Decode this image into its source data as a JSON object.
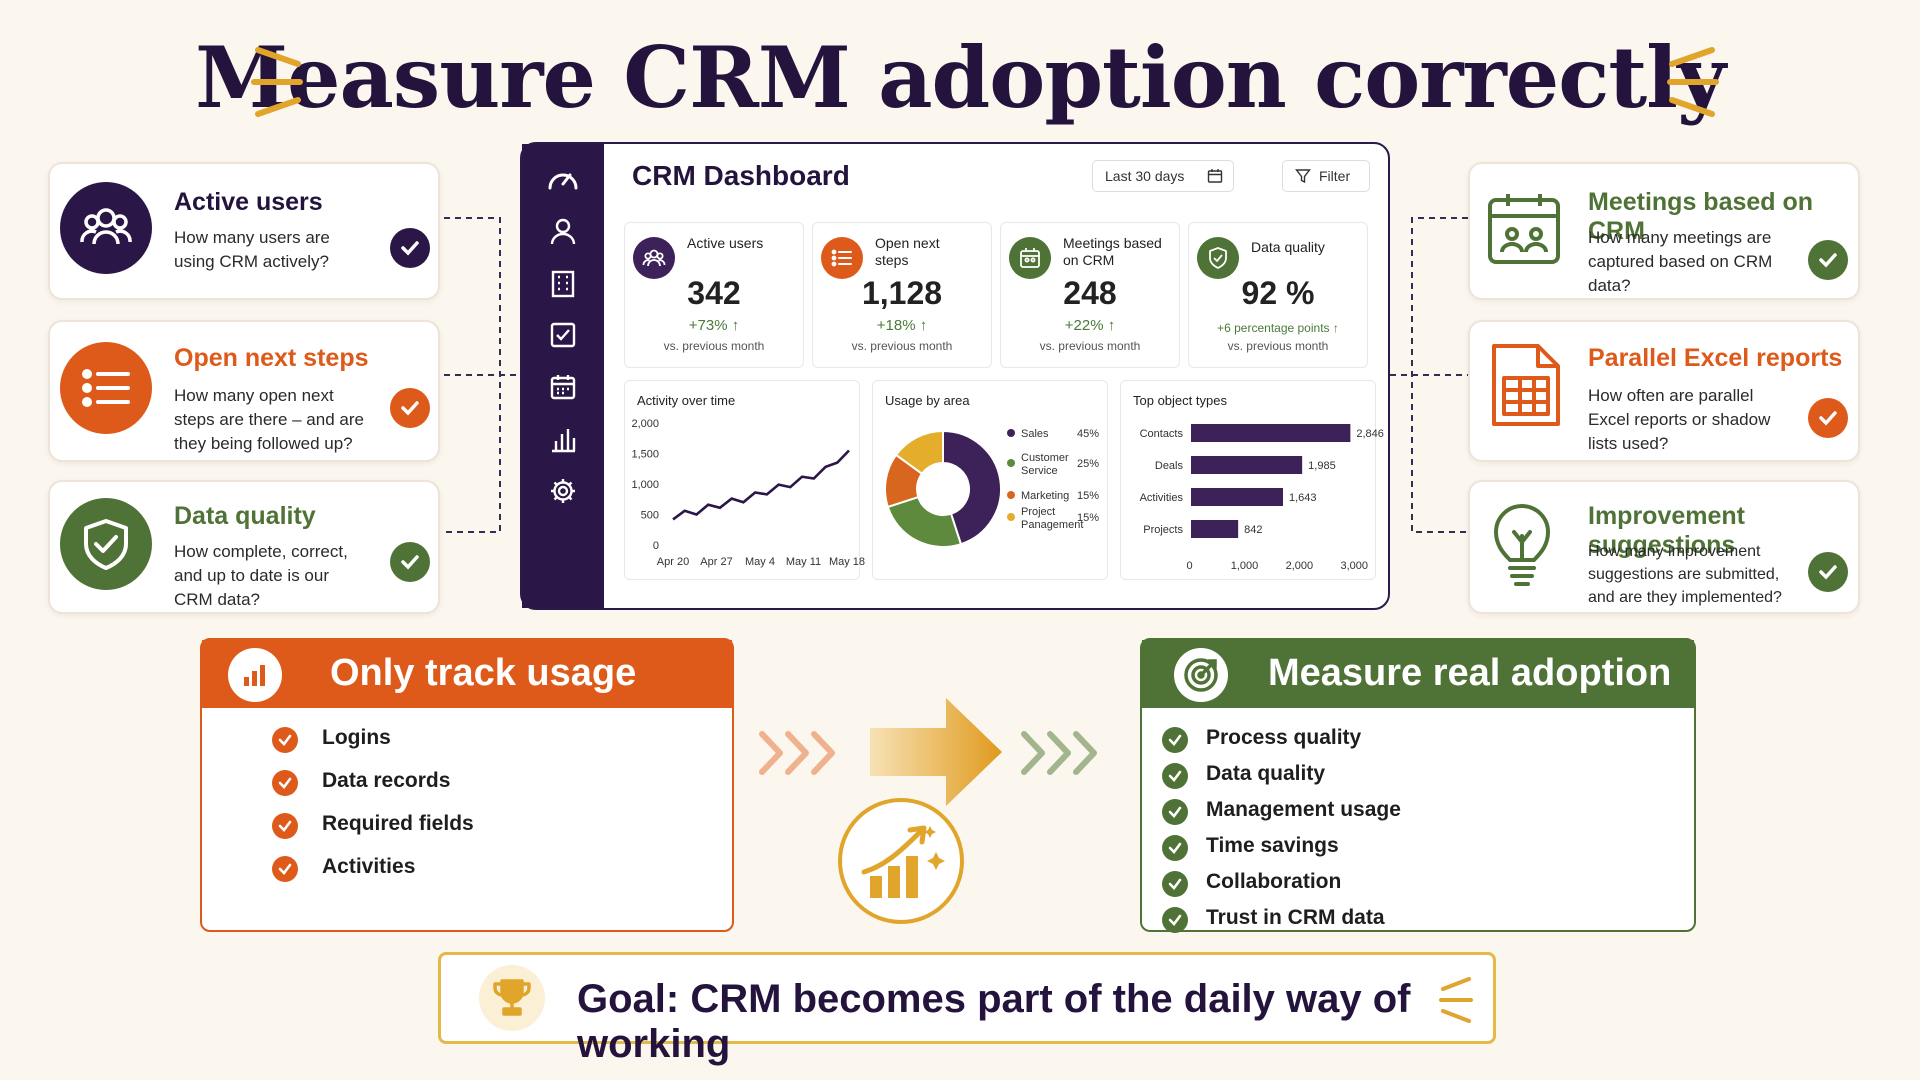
{
  "title": "Measure CRM adoption correctly",
  "colors": {
    "dark_purple": "#2b1747",
    "orange": "#dd5a1a",
    "green": "#4f7236",
    "gold": "#e0a52a",
    "background": "#fbf6ee"
  },
  "left_cards": [
    {
      "title": "Active users",
      "desc": "How many users are using CRM actively?",
      "icon": "users-icon"
    },
    {
      "title": "Open next steps",
      "desc": "How many open next steps are there – and are they being followed up?",
      "icon": "list-icon"
    },
    {
      "title": "Data quality",
      "desc": "How complete, correct, and up to date is our CRM data?",
      "icon": "shield-check-icon"
    }
  ],
  "right_cards": [
    {
      "title": "Meetings based on CRM",
      "desc": "How many meetings are captured based on CRM data?",
      "icon": "calendar-icon"
    },
    {
      "title": "Parallel Excel reports",
      "desc": "How often are parallel Excel reports or shadow lists used?",
      "icon": "spreadsheet-icon"
    },
    {
      "title": "Improvement suggestions",
      "desc": "How many improvement suggestions are submitted, and are they implemented?",
      "icon": "lightbulb-icon"
    }
  ],
  "dashboard": {
    "title": "CRM Dashboard",
    "date_range": "Last 30 days",
    "filter_label": "Filter",
    "kpis": [
      {
        "label": "Active users",
        "value": "342",
        "delta": "+73% ↑",
        "vs": "vs. previous month"
      },
      {
        "label": "Open next steps",
        "value": "1,128",
        "delta": "+18% ↑",
        "vs": "vs. previous month"
      },
      {
        "label": "Meetings based on CRM",
        "value": "248",
        "delta": "+22% ↑",
        "vs": "vs. previous month"
      },
      {
        "label": "Data quality",
        "value": "92 %",
        "delta": "+6 percentage points ↑",
        "vs": "vs. previous month"
      }
    ],
    "activity_title": "Activity over time",
    "usage_title": "Usage by area",
    "objects_title": "Top object types"
  },
  "chart_data": [
    {
      "type": "line",
      "title": "Activity over time",
      "x_ticks": [
        "Apr 20",
        "Apr 27",
        "May 4",
        "May 11",
        "May 18"
      ],
      "y_ticks": [
        "2,000",
        "1,500",
        "1,000",
        "500",
        "0"
      ],
      "ylim": [
        0,
        2000
      ],
      "x": [
        "Apr 20",
        "Apr 22",
        "Apr 24",
        "Apr 26",
        "Apr 28",
        "Apr 30",
        "May 2",
        "May 4",
        "May 6",
        "May 8",
        "May 10",
        "May 12",
        "May 14",
        "May 16",
        "May 18",
        "May 20"
      ],
      "values": [
        420,
        560,
        500,
        660,
        610,
        760,
        700,
        860,
        830,
        990,
        950,
        1120,
        1090,
        1280,
        1350,
        1550
      ]
    },
    {
      "type": "pie",
      "title": "Usage by area",
      "labels": [
        "Sales",
        "Customer Service",
        "Marketing",
        "Project Panagement"
      ],
      "value_labels": [
        "45%",
        "25%",
        "15%",
        "15%"
      ],
      "values": [
        45,
        25,
        15,
        15
      ],
      "colors": [
        "#3d2259",
        "#5e8a3e",
        "#d9661f",
        "#e5ad2c"
      ]
    },
    {
      "type": "bar",
      "title": "Top object types",
      "categories": [
        "Contacts",
        "Deals",
        "Activities",
        "Projects"
      ],
      "values": [
        2846,
        1985,
        1643,
        842
      ],
      "value_labels": [
        "2,846",
        "1,985",
        "1,643",
        "842"
      ],
      "x_ticks": [
        "0",
        "1,000",
        "2,000",
        "3,000"
      ],
      "xlim": [
        0,
        3000
      ]
    }
  ],
  "only_track": {
    "title": "Only track usage",
    "items": [
      "Logins",
      "Data records",
      "Required fields",
      "Activities"
    ]
  },
  "real_adoption": {
    "title": "Measure real adoption",
    "items": [
      "Process quality",
      "Data quality",
      "Management usage",
      "Time savings",
      "Collaboration",
      "Trust in CRM data"
    ]
  },
  "goal": {
    "prefix": "Goal:",
    "text": "CRM becomes part of the daily way of working"
  }
}
